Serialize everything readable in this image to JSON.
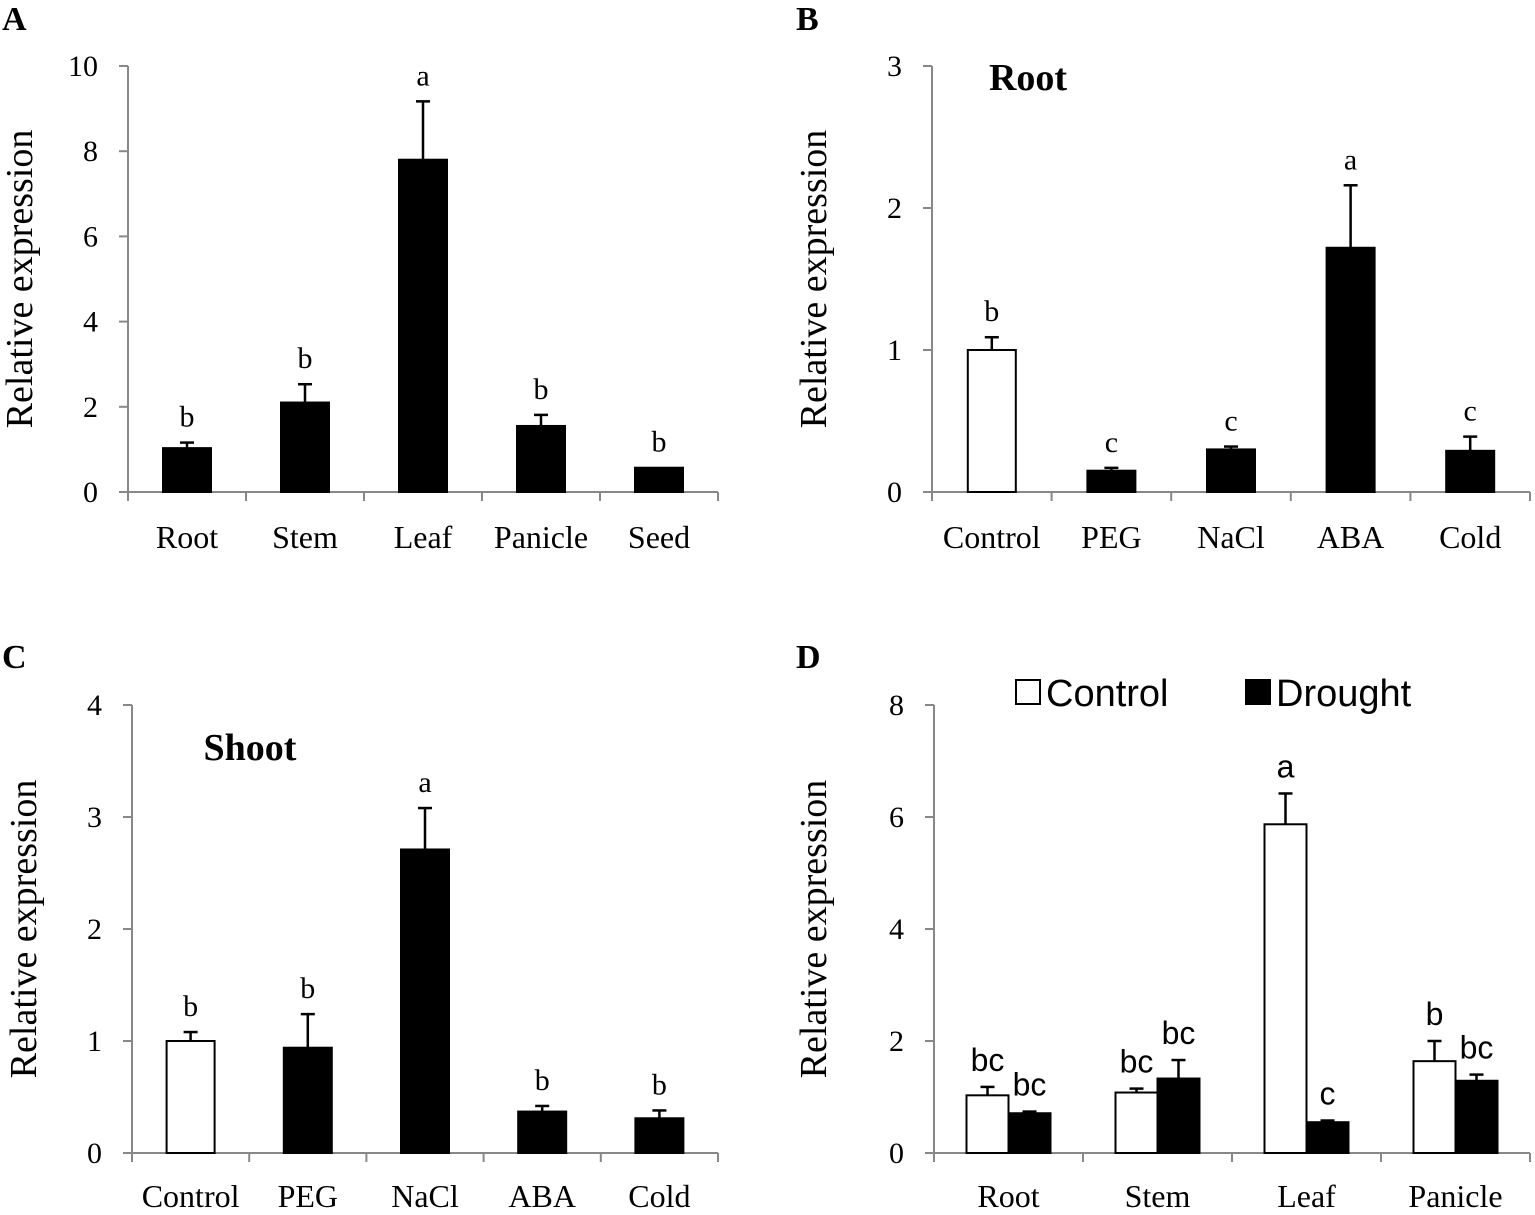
{
  "colors": {
    "black": "#000000",
    "white": "#ffffff",
    "axis": "#888888"
  },
  "chart_data": [
    {
      "panel": "A",
      "type": "bar",
      "title": "",
      "ylabel": "Relative expression",
      "ylim": [
        0,
        10
      ],
      "yticks": [
        0,
        2,
        4,
        6,
        8,
        10
      ],
      "categories": [
        "Root",
        "Stem",
        "Leaf",
        "Panicle",
        "Seed"
      ],
      "series": [
        {
          "name": "",
          "fill": "black",
          "values": [
            1.03,
            2.1,
            7.8,
            1.55,
            0.57
          ],
          "errors": [
            0.13,
            0.43,
            1.37,
            0.26,
            0.0
          ],
          "labels": [
            "b",
            "b",
            "a",
            "b",
            "b"
          ]
        }
      ]
    },
    {
      "panel": "B",
      "type": "bar",
      "title": "Root",
      "ylabel": "Relative expression",
      "ylim": [
        0,
        3
      ],
      "yticks": [
        0,
        1,
        2,
        3
      ],
      "categories": [
        "Control",
        "PEG",
        "NaCl",
        "ABA",
        "Cold"
      ],
      "series": [
        {
          "name": "",
          "fills": [
            "white",
            "black",
            "black",
            "black",
            "black"
          ],
          "values": [
            1.0,
            0.15,
            0.3,
            1.72,
            0.29
          ],
          "errors": [
            0.09,
            0.02,
            0.02,
            0.44,
            0.1
          ],
          "labels": [
            "b",
            "c",
            "c",
            "a",
            "c"
          ]
        }
      ]
    },
    {
      "panel": "C",
      "type": "bar",
      "title": "Shoot",
      "ylabel": "Relative expression",
      "ylim": [
        0,
        4
      ],
      "yticks": [
        0,
        1,
        2,
        3,
        4
      ],
      "categories": [
        "Control",
        "PEG",
        "NaCl",
        "ABA",
        "Cold"
      ],
      "series": [
        {
          "name": "",
          "fills": [
            "white",
            "black",
            "black",
            "black",
            "black"
          ],
          "values": [
            1.0,
            0.94,
            2.71,
            0.37,
            0.31
          ],
          "errors": [
            0.08,
            0.3,
            0.37,
            0.05,
            0.07
          ],
          "labels": [
            "b",
            "b",
            "a",
            "b",
            "b"
          ]
        }
      ]
    },
    {
      "panel": "D",
      "type": "bar",
      "title": "",
      "ylabel": "Relative expression",
      "ylim": [
        0,
        8
      ],
      "yticks": [
        0,
        2,
        4,
        6,
        8
      ],
      "categories": [
        "Root",
        "Stem",
        "Leaf",
        "Panicle"
      ],
      "legend": {
        "position": "top",
        "entries": [
          "Control",
          "Drought"
        ]
      },
      "series": [
        {
          "name": "Control",
          "fill": "white",
          "values": [
            1.03,
            1.08,
            5.87,
            1.64
          ],
          "errors": [
            0.15,
            0.07,
            0.55,
            0.36
          ],
          "labels": [
            "bc",
            "bc",
            "a",
            "b"
          ]
        },
        {
          "name": "Drought",
          "fill": "black",
          "values": [
            0.71,
            1.33,
            0.55,
            1.29
          ],
          "errors": [
            0.03,
            0.33,
            0.03,
            0.11
          ],
          "labels": [
            "bc",
            "bc",
            "c",
            "bc"
          ]
        }
      ]
    }
  ]
}
